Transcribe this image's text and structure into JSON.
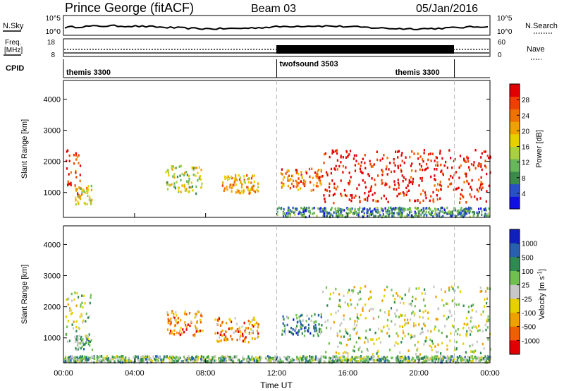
{
  "header": {
    "station": "Prince George (fitACF)",
    "beam": "Beam 03",
    "date": "05/Jan/2016"
  },
  "strip_labels": {
    "nsky": "N.Sky",
    "nsearch": "N.Search",
    "freq_line1": "Freq.",
    "freq_line2": "[MHz]",
    "nave": "Nave",
    "cpid": "CPID",
    "nsky_ticks": [
      "10^5",
      "10^0"
    ],
    "nsearch_ticks": [
      "10^5",
      "10^0"
    ],
    "freq_ticks": [
      "18",
      "8"
    ],
    "nave_ticks": [
      "60",
      "0"
    ]
  },
  "cpid_segments": [
    {
      "label": "themis 3300",
      "start": 0,
      "end": 12
    },
    {
      "label": "twofsound 3503",
      "start": 12,
      "end": 22
    },
    {
      "label": "themis 3300",
      "start": 22,
      "end": 24
    }
  ],
  "chart_data": [
    {
      "type": "heatmap",
      "quantity": "power",
      "ylabel": "Slant Range [km]",
      "ylim": [
        200,
        4600
      ],
      "yticks": [
        "1000",
        "2000",
        "3000",
        "4000"
      ],
      "xlim": [
        0,
        24
      ],
      "colorbar_label": "Power [dB]",
      "colorbar_ticks": [
        "4",
        "8",
        "12",
        "16",
        "20",
        "24",
        "28"
      ],
      "colors": [
        "#1010e0",
        "#2850c8",
        "#3a8a4a",
        "#66b85a",
        "#a8d040",
        "#e8d000",
        "#f0a000",
        "#f07000",
        "#f04000",
        "#e00000"
      ],
      "echo_regions": [
        {
          "t0": 0.1,
          "t1": 1.0,
          "r0": 900,
          "r1": 2400,
          "level": 8
        },
        {
          "t0": 0.6,
          "t1": 1.6,
          "r0": 650,
          "r1": 1250,
          "level": 5
        },
        {
          "t0": 5.7,
          "t1": 7.8,
          "r0": 1000,
          "r1": 1900,
          "level": 4
        },
        {
          "t0": 8.9,
          "t1": 11.0,
          "r0": 1000,
          "r1": 1600,
          "level": 6
        },
        {
          "t0": 12.2,
          "t1": 14.5,
          "r0": 1100,
          "r1": 1800,
          "level": 7
        },
        {
          "t0": 14.5,
          "t1": 24.0,
          "r0": 700,
          "r1": 2400,
          "level": 9
        },
        {
          "t0": 12.0,
          "t1": 24.0,
          "r0": 250,
          "r1": 550,
          "level": 2
        }
      ]
    },
    {
      "type": "heatmap",
      "quantity": "velocity",
      "ylabel": "Slant Range [km]",
      "ylim": [
        200,
        4600
      ],
      "yticks": [
        "1000",
        "2000",
        "3000",
        "4000"
      ],
      "xlim": [
        0,
        24
      ],
      "xticks": [
        "00:00",
        "04:00",
        "08:00",
        "12:00",
        "16:00",
        "20:00",
        "00:00"
      ],
      "xlabel": "Time UT",
      "colorbar_label": "Velocity [m s^-1]",
      "colorbar_ticks": [
        "1000",
        "500",
        "100",
        "25",
        "-25",
        "-100",
        "-500",
        "-1000"
      ],
      "colors": [
        "#1020c0",
        "#2860b0",
        "#2e8a50",
        "#70c050",
        "#c8c8c8",
        "#e8d000",
        "#f0a000",
        "#f06000",
        "#e00000"
      ],
      "echo_regions": [
        {
          "t0": 0.1,
          "t1": 1.5,
          "r0": 900,
          "r1": 2500,
          "level": 4
        },
        {
          "t0": 0.6,
          "t1": 1.6,
          "r0": 650,
          "r1": 1100,
          "level": 3
        },
        {
          "t0": 5.8,
          "t1": 7.8,
          "r0": 1100,
          "r1": 1900,
          "level": 6
        },
        {
          "t0": 8.5,
          "t1": 11.0,
          "r0": 900,
          "r1": 1700,
          "level": 6
        },
        {
          "t0": 12.2,
          "t1": 14.5,
          "r0": 1100,
          "r1": 1800,
          "level": 2
        },
        {
          "t0": 14.5,
          "t1": 24.0,
          "r0": 500,
          "r1": 2700,
          "level": 4
        },
        {
          "t0": 0.0,
          "t1": 24.0,
          "r0": 250,
          "r1": 450,
          "level": 3
        }
      ]
    }
  ]
}
